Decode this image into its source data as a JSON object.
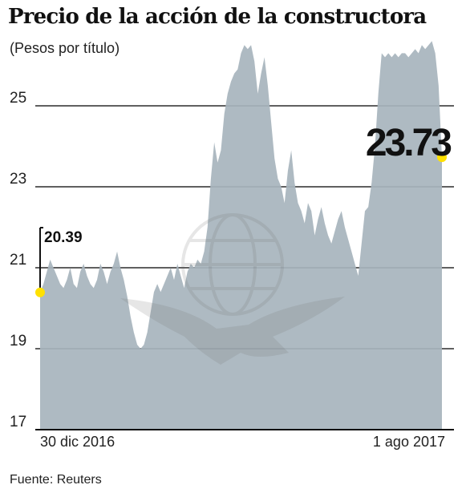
{
  "chart_data": {
    "type": "area",
    "title": "Precio de la acción de la constructora",
    "subtitle": "(Pesos por título)",
    "source": "Fuente: Reuters",
    "y_ticks": [
      25,
      23,
      21,
      19,
      17
    ],
    "ylim": [
      17,
      26.6
    ],
    "x_tick_labels": [
      {
        "label": "30 dic 2016",
        "index": 0
      },
      {
        "label": "1 ago 2017",
        "index": 120
      }
    ],
    "start_point": {
      "label": "20.39",
      "value": 20.39
    },
    "end_point": {
      "label": "23.73",
      "value": 23.73
    },
    "colors": {
      "area": "#a7b4bd",
      "grid": "#2b2b2b",
      "marker": "#ffe100",
      "axis": "#111111"
    },
    "series": [
      {
        "values": [
          20.39,
          20.6,
          20.9,
          21.2,
          21.0,
          20.8,
          20.6,
          20.5,
          20.7,
          21.0,
          20.6,
          20.5,
          20.9,
          21.1,
          20.8,
          20.6,
          20.5,
          20.7,
          21.1,
          20.9,
          20.6,
          20.9,
          21.1,
          21.4,
          21.0,
          20.7,
          20.3,
          19.8,
          19.4,
          19.1,
          19.0,
          19.1,
          19.4,
          19.9,
          20.4,
          20.6,
          20.4,
          20.6,
          20.8,
          21.0,
          20.7,
          21.1,
          20.8,
          20.5,
          20.9,
          21.1,
          21.0,
          21.2,
          21.1,
          21.4,
          22.0,
          23.2,
          24.1,
          23.6,
          23.9,
          24.8,
          25.3,
          25.6,
          25.8,
          25.9,
          26.3,
          26.5,
          26.4,
          26.5,
          26.1,
          25.3,
          25.8,
          26.2,
          25.5,
          24.6,
          23.7,
          23.2,
          23.0,
          22.6,
          23.4,
          23.9,
          23.1,
          22.6,
          22.4,
          22.1,
          22.6,
          22.4,
          21.8,
          22.2,
          22.5,
          22.1,
          21.8,
          21.6,
          21.9,
          22.2,
          22.4,
          22.0,
          21.7,
          21.4,
          21.1,
          20.8,
          21.6,
          22.4,
          22.5,
          23.1,
          24.0,
          25.3,
          26.3,
          26.2,
          26.3,
          26.2,
          26.3,
          26.2,
          26.3,
          26.3,
          26.2,
          26.3,
          26.4,
          26.3,
          26.5,
          26.4,
          26.5,
          26.6,
          26.3,
          25.5,
          23.73
        ]
      }
    ]
  }
}
